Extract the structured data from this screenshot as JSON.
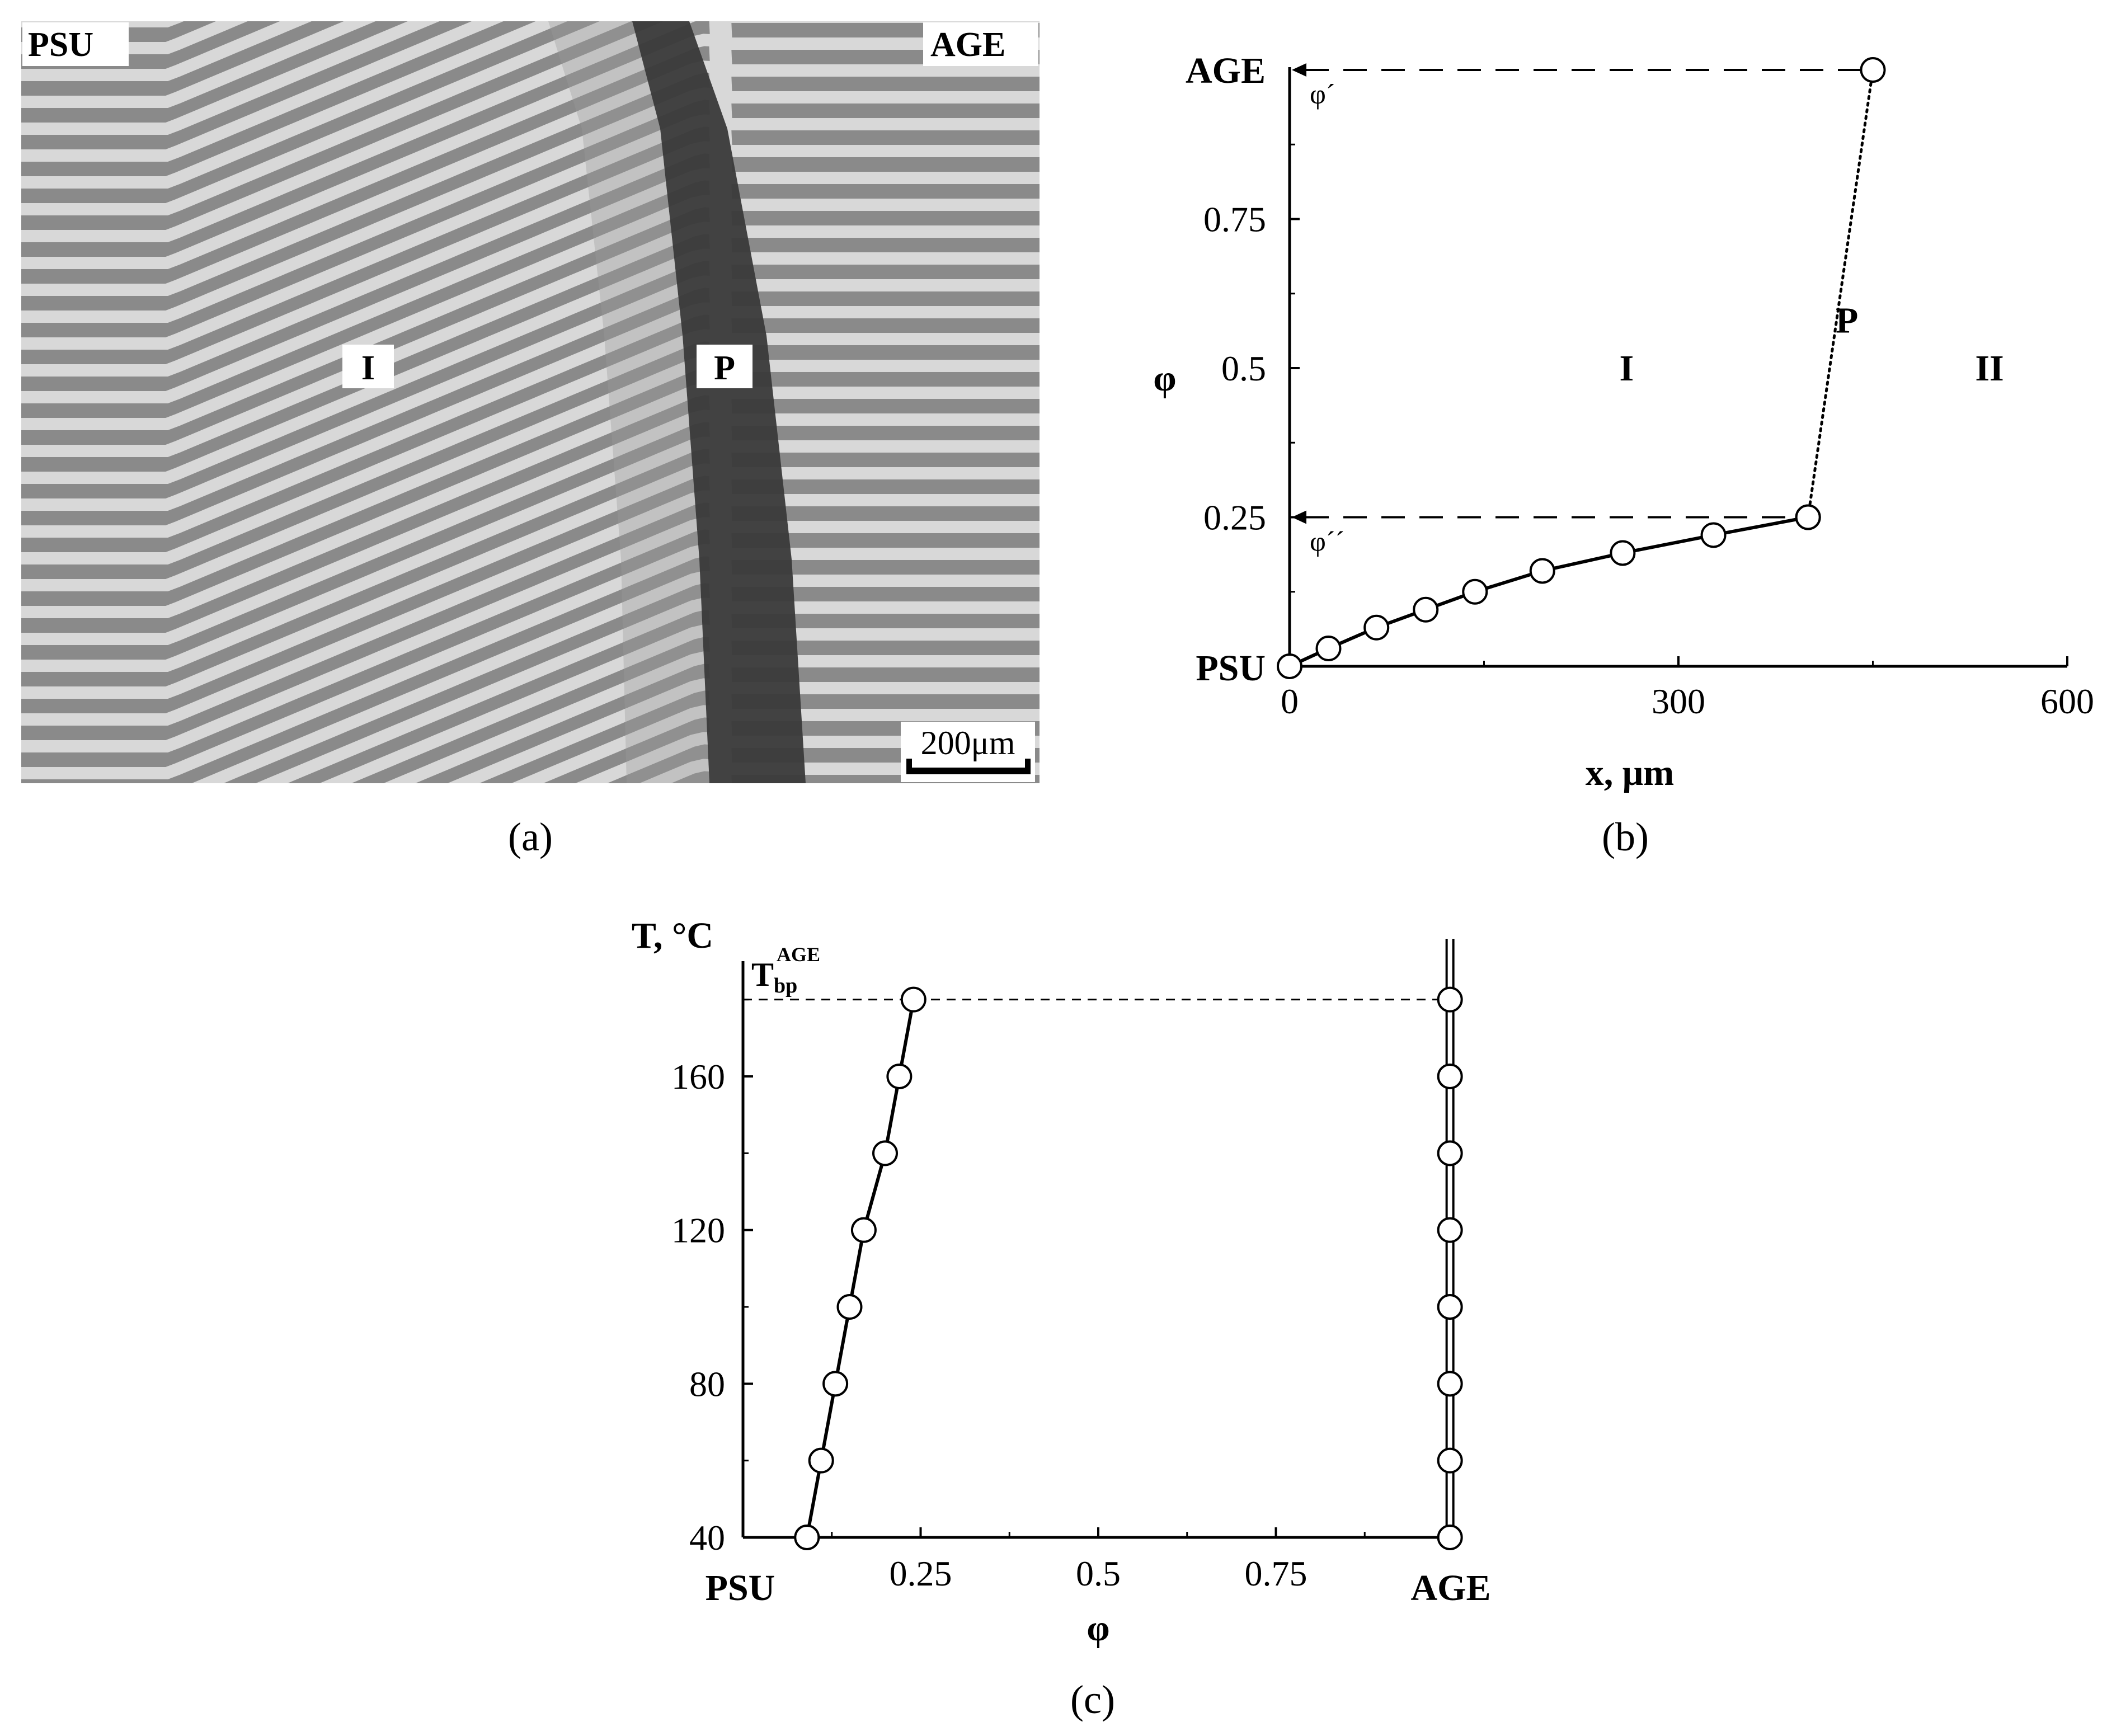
{
  "panel_a": {
    "labels": {
      "left": "PSU",
      "right": "AGE",
      "region1": "I",
      "boundary": "P"
    },
    "scale_bar": "200μm",
    "caption": "(a)",
    "colors": {
      "stripe_dark": "#8a8a8a",
      "stripe_light": "#d8d8d8",
      "boundary": "#3c3c3c"
    }
  },
  "chart_data": [
    {
      "id": "b",
      "type": "line",
      "caption": "(b)",
      "xlabel": "x, μm",
      "ylabel": "φ",
      "xlim": [
        0,
        600
      ],
      "ylim": [
        0,
        1
      ],
      "x_ticks": [
        "0",
        "300",
        "600"
      ],
      "y_ticks": [
        "0.25",
        "0.5",
        "0.75"
      ],
      "y_end_labels": {
        "bottom": "PSU",
        "top": "AGE"
      },
      "series": [
        {
          "style": "solid",
          "marker": "open-circle",
          "x": [
            0,
            30,
            67,
            105,
            143,
            195,
            257,
            327,
            400
          ],
          "y": [
            0,
            0.03,
            0.065,
            0.095,
            0.125,
            0.16,
            0.19,
            0.22,
            0.25
          ]
        },
        {
          "style": "dotted",
          "marker": "open-circle",
          "x": [
            400,
            450
          ],
          "y": [
            0.25,
            1.0
          ]
        }
      ],
      "reference_lines": [
        {
          "style": "dashed",
          "x_from": 0,
          "x_to": 450,
          "y": 1.0,
          "label": "φ´"
        },
        {
          "style": "dashed",
          "x_from": 0,
          "x_to": 400,
          "y": 0.25,
          "label": "φ´´"
        }
      ],
      "annotations": [
        {
          "text": "I",
          "x": 260,
          "y": 0.5
        },
        {
          "text": "P",
          "x": 430,
          "y": 0.58
        },
        {
          "text": "II",
          "x": 540,
          "y": 0.5
        }
      ]
    },
    {
      "id": "c",
      "type": "line",
      "caption": "(c)",
      "xlabel": "φ",
      "ylabel": "T, °C",
      "xlim": [
        0,
        1
      ],
      "ylim": [
        40,
        190
      ],
      "x_ticks": [
        "0.25",
        "0.5",
        "0.75"
      ],
      "y_ticks": [
        "40",
        "80",
        "120",
        "160"
      ],
      "x_end_labels": {
        "left": "PSU",
        "right": "AGE"
      },
      "series": [
        {
          "style": "solid",
          "marker": "open-circle",
          "x": [
            0.09,
            0.11,
            0.13,
            0.15,
            0.17,
            0.2,
            0.22,
            0.24
          ],
          "y": [
            40,
            60,
            80,
            100,
            120,
            140,
            160,
            180
          ]
        },
        {
          "style": "double",
          "marker": "open-circle",
          "x": [
            0.995,
            0.995,
            0.995,
            0.995,
            0.995,
            0.995,
            0.995,
            0.995
          ],
          "y": [
            40,
            60,
            80,
            100,
            120,
            140,
            160,
            180
          ]
        }
      ],
      "reference_lines": [
        {
          "style": "dashed",
          "y": 180,
          "x_from": 0,
          "x_to": 0.995,
          "label_main": "T",
          "label_sub": "bp",
          "label_sup": "AGE"
        }
      ]
    }
  ]
}
